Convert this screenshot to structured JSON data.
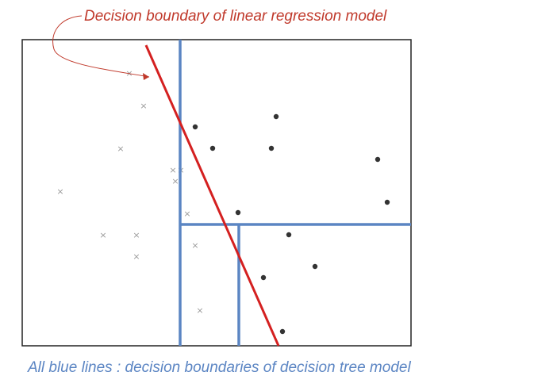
{
  "captions": {
    "linear_regression": "Decision boundary of linear regression model",
    "decision_tree": "All blue lines : decision boundaries of decision tree model"
  },
  "colors": {
    "regression_line": "#d42020",
    "tree_lines": "#5b85c3",
    "top_caption": "#c0392b",
    "bottom_caption": "#5b85c3",
    "frame": "#222222",
    "cross_marker": "#9a9a9a",
    "dot_marker": "#333333",
    "annotation_arrow": "#c0392b"
  },
  "markers": {
    "crosses": 14,
    "dots": 13
  }
}
